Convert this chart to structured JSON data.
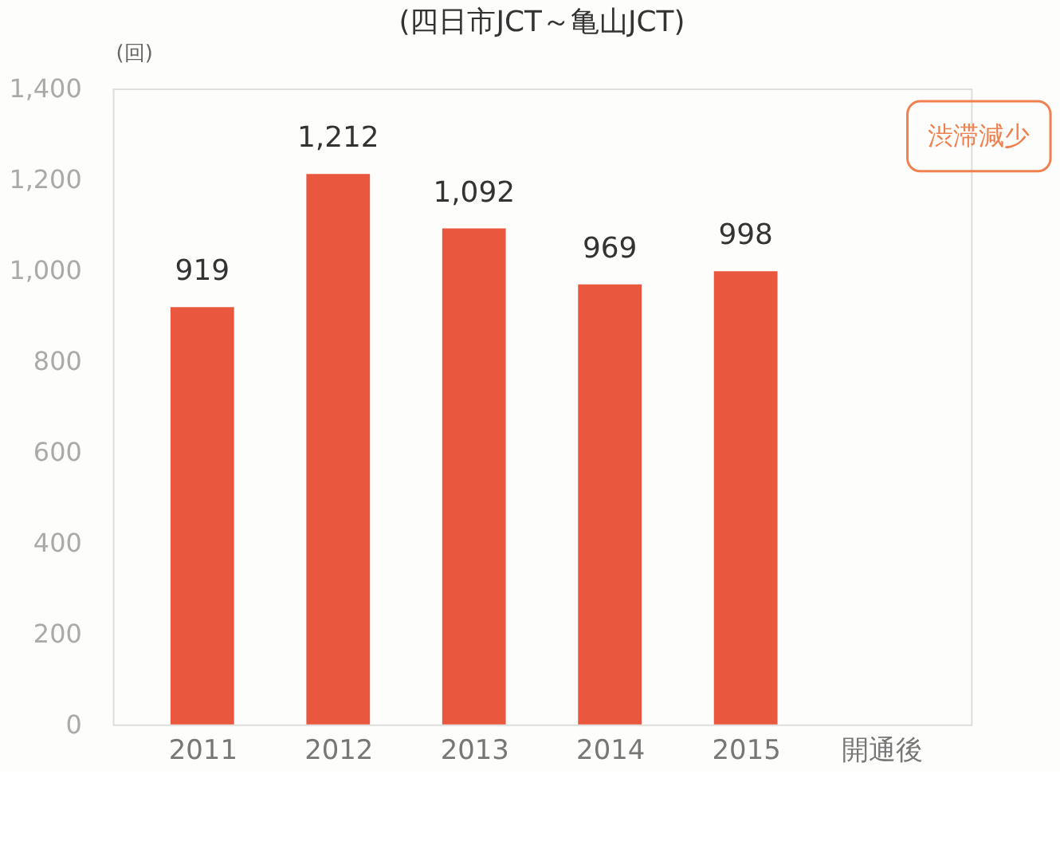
{
  "chart_data": {
    "type": "bar",
    "title": "(四日市JCT～亀山JCT)",
    "ylabel": "(回)",
    "categories": [
      "2011",
      "2012",
      "2013",
      "2014",
      "2015",
      "開通後"
    ],
    "values": [
      919,
      1212,
      1092,
      969,
      998,
      null
    ],
    "color": "#e9573f",
    "ylim": [
      0,
      1400
    ],
    "yticks": [
      0,
      200,
      400,
      600,
      800,
      {
        "value": 1000,
        "label": "1,000"
      },
      {
        "value": 1200,
        "label": "1,200"
      },
      {
        "value": 1400,
        "label": "1,400"
      }
    ],
    "value_labels": [
      "919",
      "1,212",
      "1,092",
      "969",
      "998",
      null
    ],
    "grid": false,
    "annotations": [
      "渋滞減少"
    ]
  }
}
